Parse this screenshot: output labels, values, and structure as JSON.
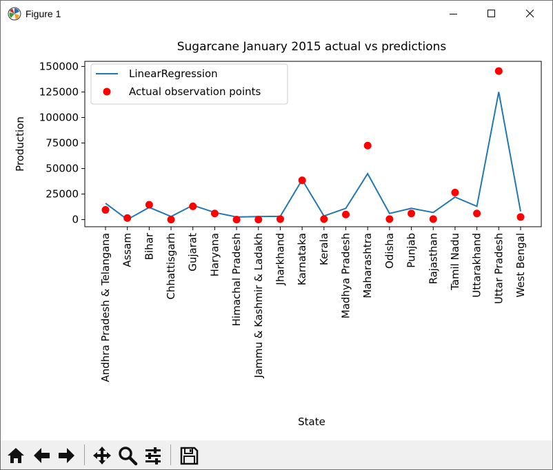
{
  "window": {
    "title": "Figure 1"
  },
  "toolbar": {
    "buttons": [
      {
        "name": "home-button",
        "icon": "home-icon"
      },
      {
        "name": "back-button",
        "icon": "arrow-left-icon"
      },
      {
        "name": "forward-button",
        "icon": "arrow-right-icon"
      },
      {
        "name": "pan-button",
        "icon": "move-icon"
      },
      {
        "name": "zoom-button",
        "icon": "zoom-icon"
      },
      {
        "name": "configure-subplots-button",
        "icon": "sliders-icon"
      },
      {
        "name": "save-button",
        "icon": "save-icon"
      }
    ]
  },
  "colors": {
    "line": "#1f77b4",
    "points": "#ff0000"
  },
  "chart_data": {
    "type": "line",
    "title": "Sugarcane January 2015 actual vs predictions",
    "xlabel": "State",
    "ylabel": "Production",
    "ylim": [
      -7000,
      155000
    ],
    "yticks": [
      0,
      25000,
      50000,
      75000,
      100000,
      125000,
      150000
    ],
    "grid": false,
    "legend_position": "upper left",
    "categories": [
      "Andhra Pradesh & Telangana",
      "Assam",
      "Bihar",
      "Chhattisgarh",
      "Gujarat",
      "Haryana",
      "Himachal Pradesh",
      "Jammu & Kashmir & Ladakh",
      "Jharkhand",
      "Karnataka",
      "Kerala",
      "Madhya Pradesh",
      "Maharashtra",
      "Odisha",
      "Punjab",
      "Rajasthan",
      "Tamil Nadu",
      "Uttarakhand",
      "Uttar Pradesh",
      "West Bengal"
    ],
    "series": [
      {
        "name": "LinearRegression",
        "kind": "line",
        "values": [
          16000,
          0,
          12000,
          3000,
          14000,
          7000,
          2500,
          3000,
          3200,
          39000,
          3500,
          11000,
          45000,
          6000,
          11000,
          7000,
          22000,
          13000,
          125000,
          8000
        ]
      },
      {
        "name": "Actual observation points",
        "kind": "scatter",
        "values": [
          9500,
          1500,
          14500,
          0,
          13000,
          6000,
          0,
          0,
          500,
          38500,
          500,
          5000,
          72500,
          500,
          6000,
          500,
          26500,
          6000,
          145500,
          2500
        ]
      }
    ]
  }
}
